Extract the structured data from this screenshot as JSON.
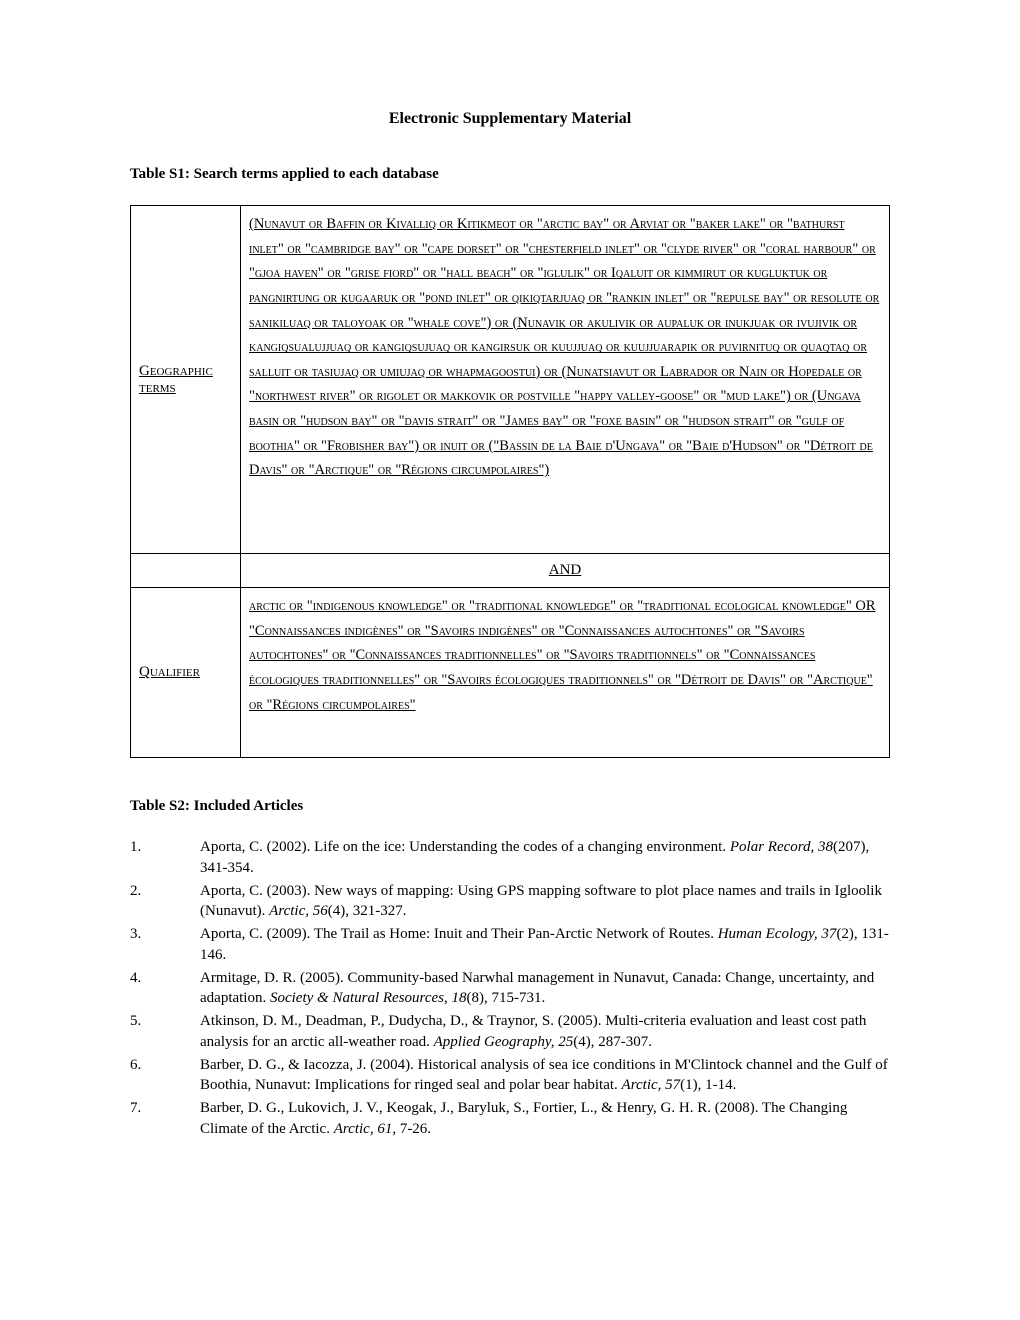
{
  "doc_title": "Electronic Supplementary Material",
  "table1_caption": "Table S1: Search terms applied to each database",
  "search_rows": {
    "geographic": {
      "label": "Geographic terms",
      "content": "(Nunavut or Baffin or Kivalliq or Kitikmeot or \"arctic bay\" or Arviat or \"baker lake\" or \"bathurst inlet\" or \"cambridge bay\" or \"cape dorset\" or \"chesterfield inlet\" or \"clyde river\" or \"coral harbour\" or \"gjoa haven\" or \"grise fiord\" or \"hall beach\" or \"iglulik\" or Iqaluit or kimmirut or kugluktuk or pangnirtung or kugaaruk or \"pond inlet\" or qikiqtarjuaq or \"rankin inlet\" or \"repulse bay\" or resolute or sanikiluaq or taloyoak or \"whale cove\") or (Nunavik or akulivik or aupaluk or inukjuak or ivujivik or kangiqsualujjuaq or kangiqsujuaq or kangirsuk or kuujjuaq or kuujjuarapik or puvirnituq or quaqtaq or salluit or tasiujaq or umiujaq or whapmagoostui) or (Nunatsiavut or Labrador or Nain or Hopedale or \"northwest river\" or rigolet or makkovik or postville \"happy valley-goose\" or \"mud lake\") or (Ungava basin or \"hudson bay\" or \"davis strait\" or \"James bay\" or \"foxe basin\" or \"hudson strait\" or \"gulf of boothia\" or \"Frobisher bay\") or inuit or (\"Bassin de la Baie d'Ungava\" or \"Baie d'Hudson\" or \"Détroit de Davis\" or \"Arctique\" or \"Régions circumpolaires\")"
    },
    "and_label": "AND",
    "qualifier": {
      "label": "Qualifier",
      "content": "arctic or \"indigenous knowledge\" or \"traditional knowledge\" or \"traditional ecological knowledge\" OR \"Connaissances indigènes\" or \"Savoirs indigènes\" or \"Connaissances autochtones\" or \"Savoirs autochtones\" or \"Connaissances traditionnelles\" or \"Savoirs traditionnels\" or \"Connaissances écologiques traditionnelles\" or \"Savoirs écologiques traditionnels\" or \"Détroit de Davis\" or \"Arctique\" or \"Régions circumpolaires\""
    }
  },
  "table2_caption": "Table S2: Included Articles",
  "articles": [
    {
      "num": "1.",
      "text": "Aporta, C. (2002). Life on the ice: Understanding the codes of a changing environment. ",
      "journal": "Polar Record, 38",
      "rest": "(207), 341-354."
    },
    {
      "num": "2.",
      "text": "Aporta, C. (2003). New ways of mapping: Using GPS mapping software to plot place names and trails in Igloolik (Nunavut). ",
      "journal": "Arctic, 56",
      "rest": "(4), 321-327."
    },
    {
      "num": "3.",
      "text": "Aporta, C. (2009). The Trail as Home: Inuit and Their Pan-Arctic Network of Routes. ",
      "journal": "Human Ecology, 37",
      "rest": "(2), 131-146."
    },
    {
      "num": "4.",
      "text": "Armitage, D. R. (2005). Community-based Narwhal management in Nunavut, Canada: Change, uncertainty, and adaptation. ",
      "journal": "Society & Natural Resources, 18",
      "rest": "(8), 715-731."
    },
    {
      "num": "5.",
      "text": "Atkinson, D. M., Deadman, P., Dudycha, D., & Traynor, S. (2005). Multi-criteria evaluation and least cost path analysis for an arctic all-weather road. ",
      "journal": "Applied Geography, 25",
      "rest": "(4), 287-307."
    },
    {
      "num": "6.",
      "text": "Barber, D. G., & Iacozza, J. (2004). Historical analysis of sea ice conditions in M'Clintock channel and the Gulf of Boothia, Nunavut: Implications for ringed seal and polar bear habitat. ",
      "journal": "Arctic, 57",
      "rest": "(1), 1-14."
    },
    {
      "num": "7.",
      "text": "Barber, D. G., Lukovich, J. V., Keogak, J., Baryluk, S., Fortier, L., & Henry, G. H. R. (2008). The Changing Climate of the Arctic. ",
      "journal": "Arctic, 61",
      "rest": ", 7-26."
    }
  ],
  "colors": {
    "text": "#000000",
    "background": "#ffffff",
    "border": "#000000"
  }
}
